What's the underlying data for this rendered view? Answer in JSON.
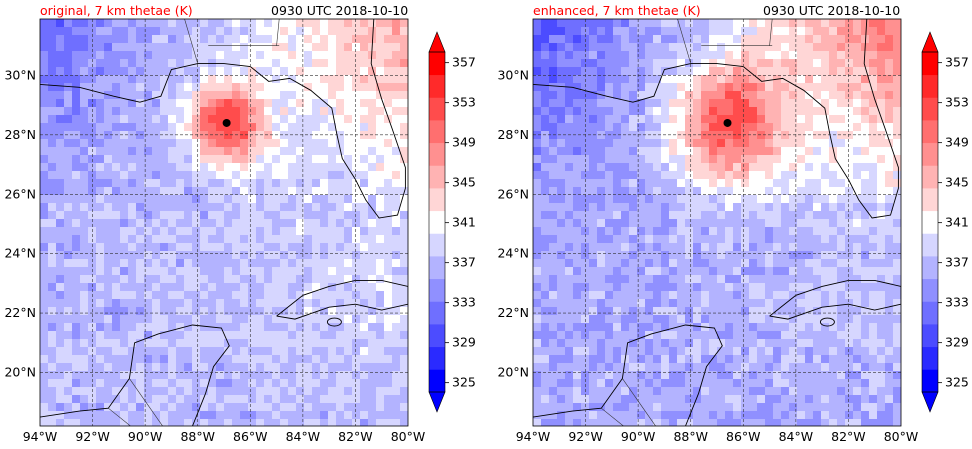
{
  "figure": {
    "colormap_colors": [
      "#0000ff",
      "#2a2aff",
      "#4c4cff",
      "#6f6fff",
      "#9090ff",
      "#b3b3ff",
      "#d6d6ff",
      "#ffffff",
      "#ffd6d6",
      "#ffb3b3",
      "#ff9090",
      "#ff6f6f",
      "#ff4c4c",
      "#ff2a2a",
      "#ff0000"
    ]
  },
  "chart_data": [
    {
      "type": "heatmap",
      "title_left": "original, 7 km thetae (K)",
      "title_right": "0930 UTC 2018-10-10",
      "xlabel": "",
      "ylabel": "",
      "xlim": [
        -94,
        -80
      ],
      "ylim": [
        18.2,
        31.9
      ],
      "x_ticks": [
        "94°W",
        "92°W",
        "90°W",
        "88°W",
        "86°W",
        "84°W",
        "82°W",
        "80°W"
      ],
      "y_ticks": [
        "20°N",
        "22°N",
        "24°N",
        "26°N",
        "28°N",
        "30°N"
      ],
      "grid": true,
      "colorbar": {
        "ticks": [
          "325",
          "329",
          "333",
          "337",
          "341",
          "345",
          "349",
          "353",
          "357"
        ],
        "range": [
          325,
          359
        ],
        "extend": "both",
        "location": "right"
      },
      "storm_center": {
        "lon": -86.9,
        "lat": 28.4
      },
      "field_summary": {
        "storm_core_max": 357,
        "gulf_background": 338,
        "northeast_land": 347
      }
    },
    {
      "type": "heatmap",
      "title_left": "enhanced, 7 km thetae (K)",
      "title_right": "0930 UTC 2018-10-10",
      "xlabel": "",
      "ylabel": "",
      "xlim": [
        -94,
        -80
      ],
      "ylim": [
        18.2,
        31.9
      ],
      "x_ticks": [
        "94°W",
        "92°W",
        "90°W",
        "88°W",
        "86°W",
        "84°W",
        "82°W",
        "80°W"
      ],
      "y_ticks": [
        "20°N",
        "22°N",
        "24°N",
        "26°N",
        "28°N",
        "30°N"
      ],
      "grid": true,
      "colorbar": {
        "ticks": [
          "325",
          "329",
          "333",
          "337",
          "341",
          "345",
          "349",
          "353",
          "357"
        ],
        "range": [
          325,
          359
        ],
        "extend": "both",
        "location": "right"
      },
      "storm_center": {
        "lon": -86.6,
        "lat": 28.4
      },
      "field_summary": {
        "storm_core_max": 359,
        "gulf_background": 337,
        "northeast_land": 350
      }
    }
  ]
}
